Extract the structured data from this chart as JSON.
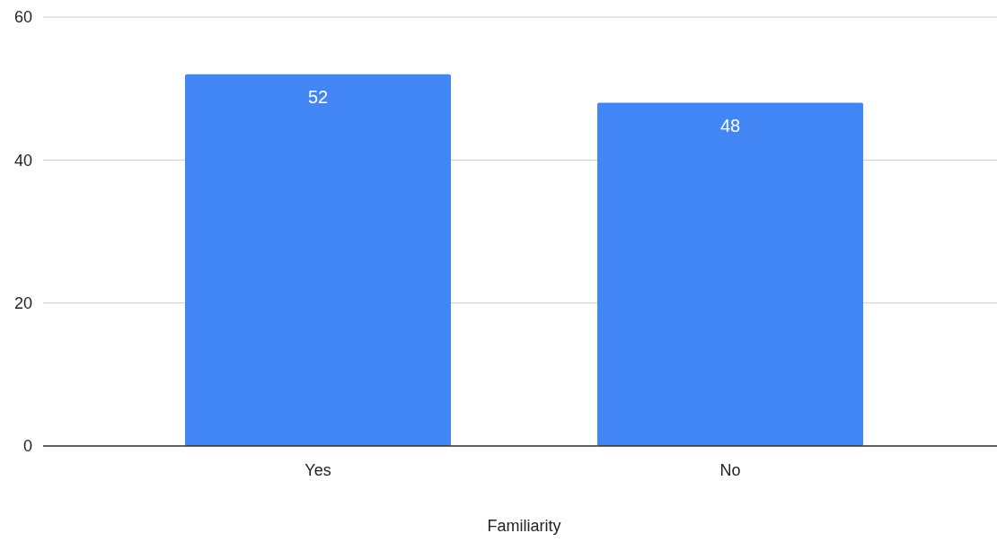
{
  "chart_data": {
    "type": "bar",
    "xlabel": "Familiarity",
    "categories": [
      "Yes",
      "No"
    ],
    "values": [
      52,
      48
    ],
    "color": "#4285f4",
    "ylim": [
      0,
      60
    ],
    "yticks": [
      0,
      20,
      40,
      60
    ],
    "grid": true,
    "data_labels": true
  }
}
